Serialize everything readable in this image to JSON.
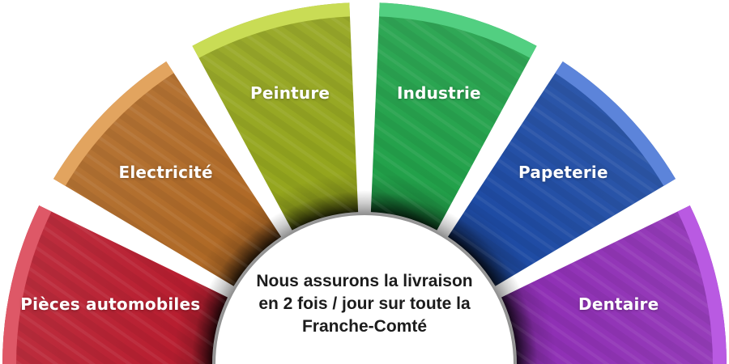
{
  "diagram": {
    "center_text": "Nous assurons la livraison\nen 2 fois / jour sur toute la\nFranche-Comté",
    "center_text_color": "#1c1c1c",
    "background_color": "#ffffff",
    "label_color": "#ffffff",
    "inner_shadow_color": "#1a1a1a",
    "segments": [
      {
        "label": "Pièces automobiles",
        "color": "#b81e30",
        "rim_color": "#de5867"
      },
      {
        "label": "Electricité",
        "color": "#af6926",
        "rim_color": "#e2a45f"
      },
      {
        "label": "Peinture",
        "color": "#94a51d",
        "rim_color": "#c9dc55"
      },
      {
        "label": "Industrie",
        "color": "#22a14a",
        "rim_color": "#52cf81"
      },
      {
        "label": "Papeterie",
        "color": "#1e4ba4",
        "rim_color": "#5c84da"
      },
      {
        "label": "Dentaire",
        "color": "#8f30b5",
        "rim_color": "#b95ae2"
      }
    ]
  }
}
